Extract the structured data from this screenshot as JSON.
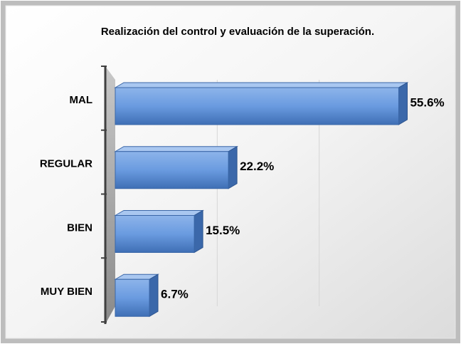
{
  "chart_data": {
    "type": "bar",
    "orientation": "horizontal",
    "title": "Realización del control y evaluación de la superación.",
    "categories": [
      "MAL",
      "REGULAR",
      "BIEN",
      "MUY BIEN"
    ],
    "values": [
      55.6,
      22.2,
      15.5,
      6.7
    ],
    "value_labels": [
      "55.6%",
      "22.2%",
      "15.5%",
      "6.7%"
    ],
    "color": "#5b8fd4",
    "xlim": [
      0,
      60
    ],
    "xticks": [
      20,
      40
    ],
    "grid": true
  }
}
